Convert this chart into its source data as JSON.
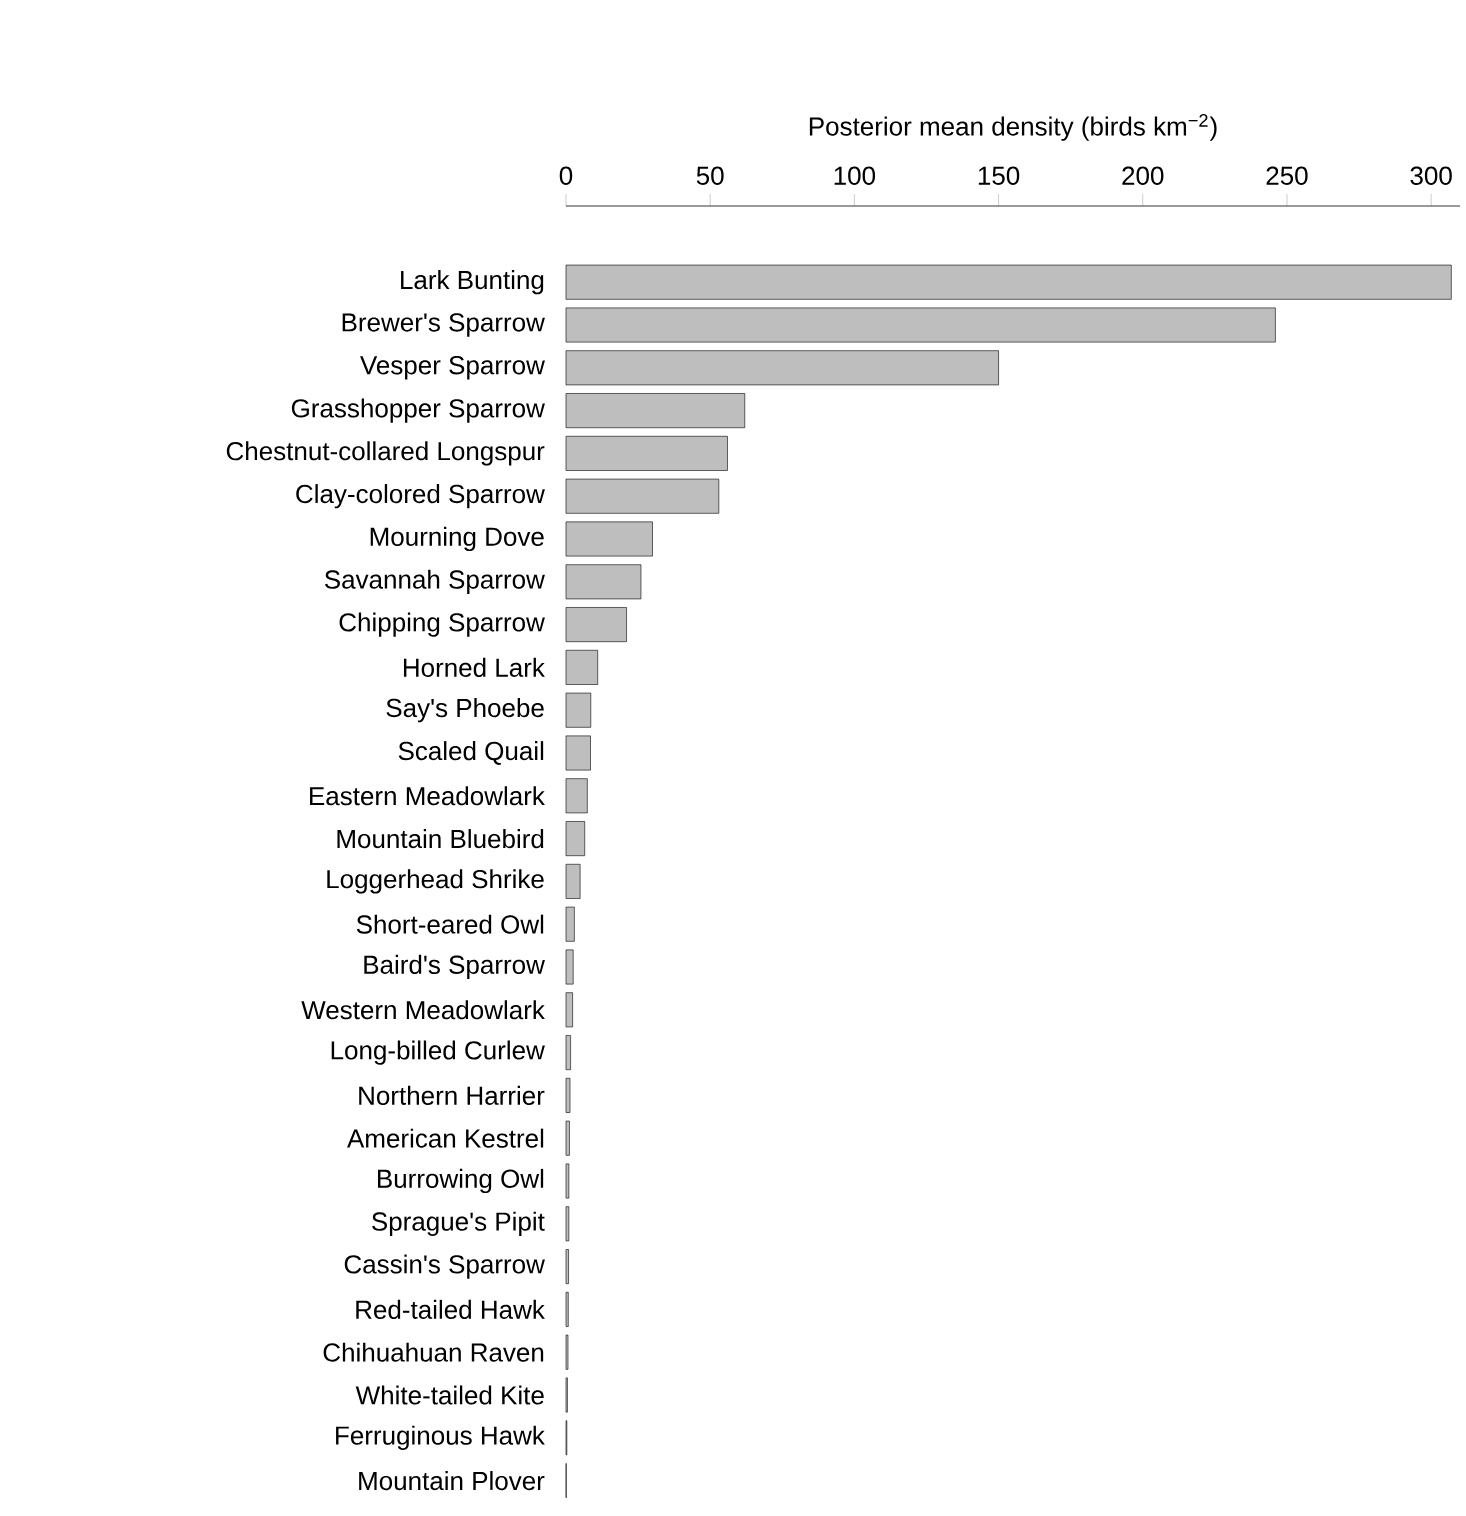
{
  "chart_data": {
    "type": "bar",
    "orientation": "horizontal",
    "xlabel": "Posterior mean density (birds km$^{−2}$)",
    "categories": [
      "Lark Bunting",
      "Brewer's Sparrow",
      "Vesper Sparrow",
      "Grasshopper Sparrow",
      "Chestnut-collared Longspur",
      "Clay-colored Sparrow",
      "Mourning Dove",
      "Savannah Sparrow",
      "Chipping Sparrow",
      "Horned Lark",
      "Say's Phoebe",
      "Scaled Quail",
      "Eastern Meadowlark",
      "Mountain Bluebird",
      "Loggerhead Shrike",
      "Short-eared Owl",
      "Baird's Sparrow",
      "Western Meadowlark",
      "Long-billed Curlew",
      "Northern Harrier",
      "American Kestrel",
      "Burrowing Owl",
      "Sprague's Pipit",
      "Cassin's Sparrow",
      "Red-tailed Hawk",
      "Chihuahuan Raven",
      "White-tailed Kite",
      "Ferruginous Hawk",
      "Mountain Plover"
    ],
    "values": [
      307,
      246,
      150,
      62,
      56,
      53,
      30,
      26,
      21,
      11,
      8.6,
      8.5,
      7.4,
      6.5,
      4.9,
      2.9,
      2.5,
      2.3,
      1.6,
      1.4,
      1.2,
      1.0,
      1.0,
      0.9,
      0.8,
      0.7,
      0.5,
      0.3,
      0.1
    ],
    "color": "#bebebe",
    "xlim": [
      0,
      310
    ],
    "xticks": [
      0,
      50,
      100,
      150,
      200,
      250,
      300
    ]
  }
}
